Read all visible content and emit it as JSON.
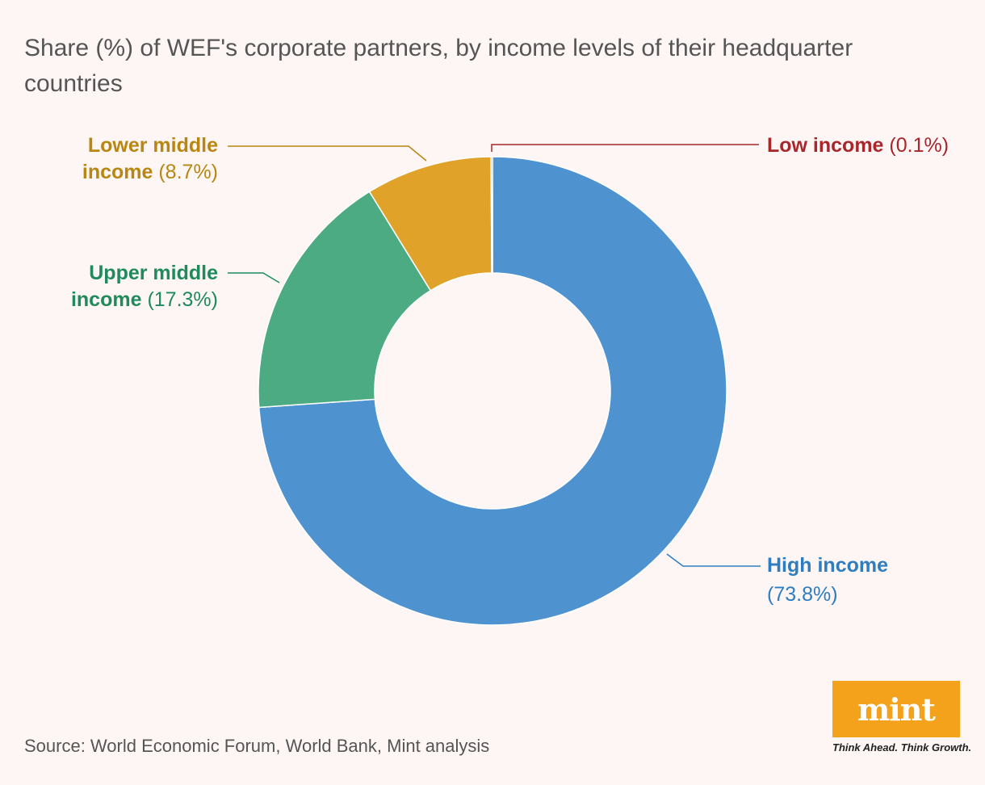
{
  "title": "Share (%) of WEF's corporate partners, by income levels of their headquarter countries",
  "source": "Source: World Economic Forum, World Bank, Mint analysis",
  "logo": {
    "word": "mint",
    "tagline": "Think Ahead. Think Growth.",
    "color": "#f4a21c"
  },
  "chart_data": {
    "type": "pie",
    "donut": true,
    "series": [
      {
        "name": "High income",
        "value": 73.8,
        "label": "(73.8%)",
        "color": "#4e93d0",
        "label_color": "#2f7dbf"
      },
      {
        "name": "Upper middle income",
        "value": 17.3,
        "label": "(17.3%)",
        "color": "#4cab82",
        "label_color": "#1f8a5c"
      },
      {
        "name": "Lower middle income",
        "value": 8.7,
        "label": "(8.7%)",
        "color": "#e1a22a",
        "label_color": "#b98612"
      },
      {
        "name": "Low income",
        "value": 0.1,
        "label": "(0.1%)",
        "color": "#b02a30",
        "label_color": "#a8262c"
      }
    ]
  }
}
